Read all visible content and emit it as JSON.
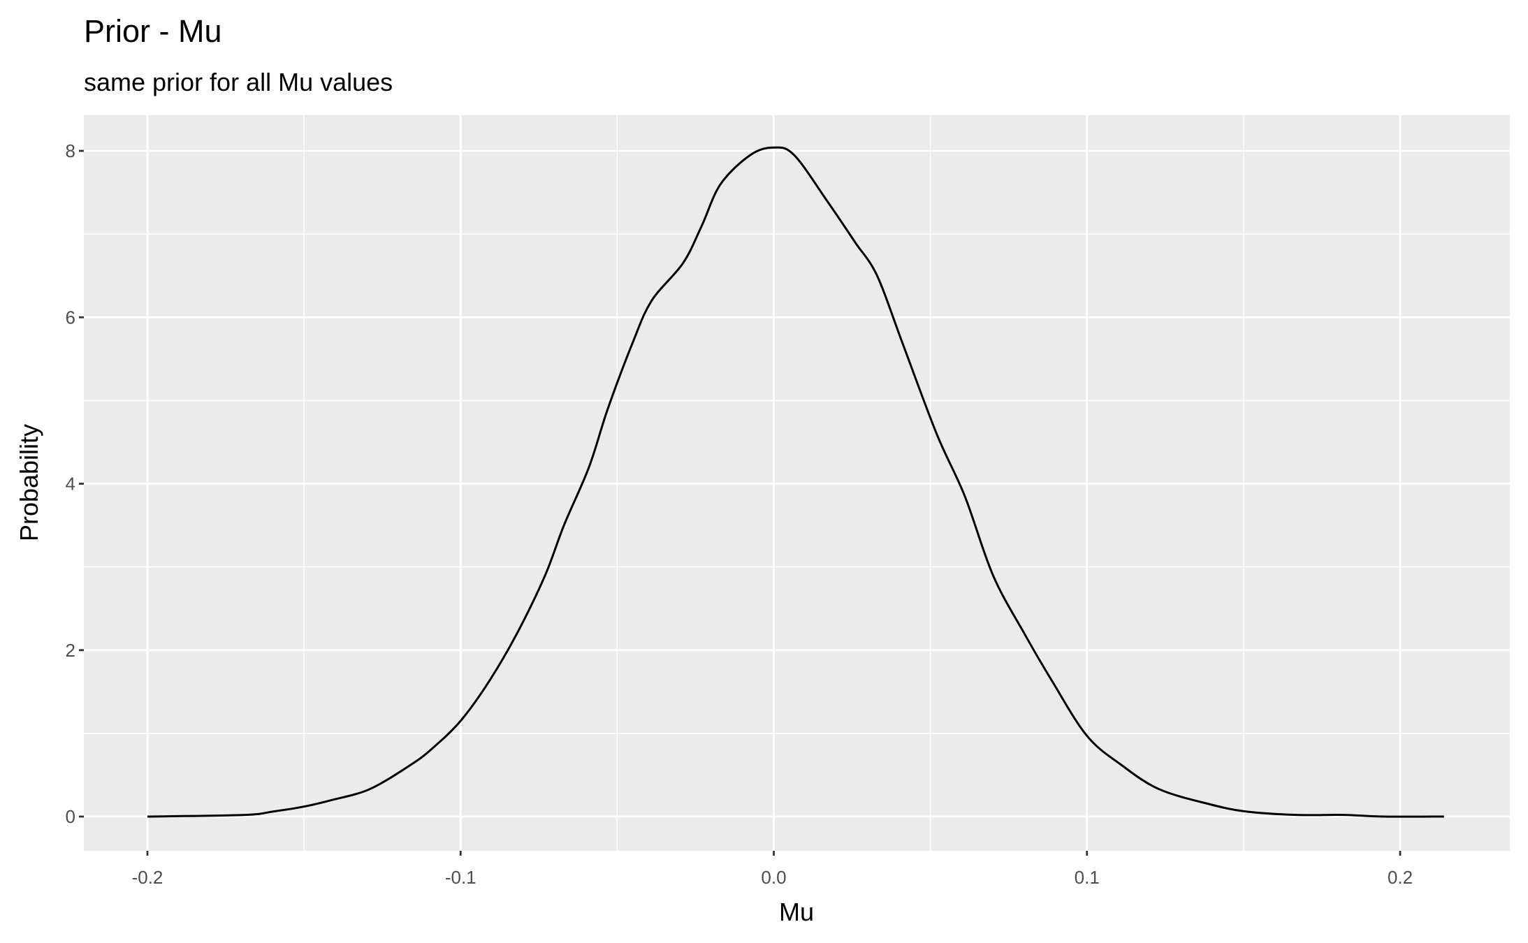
{
  "chart_data": {
    "type": "line",
    "title": "Prior - Mu",
    "subtitle": "same prior for all Mu values",
    "xlabel": "Mu",
    "ylabel": "Probability",
    "xlim": [
      -0.22,
      0.235
    ],
    "ylim": [
      -0.4,
      8.45
    ],
    "x_ticks": [
      -0.2,
      -0.1,
      0.0,
      0.1,
      0.2
    ],
    "x_tick_labels": [
      "-0.2",
      "-0.1",
      "0.0",
      "0.1",
      "0.2"
    ],
    "y_ticks": [
      0,
      2,
      4,
      6,
      8
    ],
    "y_tick_labels": [
      "0",
      "2",
      "4",
      "6",
      "8"
    ],
    "grid": true,
    "colors": {
      "panel": "#EBEBEB",
      "grid": "#FFFFFF",
      "line": "#000000"
    },
    "series": [
      {
        "x": [
          -0.2,
          -0.169,
          -0.16,
          -0.15,
          -0.141,
          -0.129,
          -0.116,
          -0.109,
          -0.1,
          -0.091,
          -0.082,
          -0.073,
          -0.067,
          -0.059,
          -0.053,
          -0.045,
          -0.039,
          -0.029,
          -0.023,
          -0.017,
          -0.0075,
          0.0,
          0.0065,
          0.017,
          0.026,
          0.033,
          0.041,
          0.052,
          0.061,
          0.07,
          0.08,
          0.089,
          0.1,
          0.111,
          0.123,
          0.139,
          0.151,
          0.167,
          0.182,
          0.195,
          0.214
        ],
        "y": [
          0,
          0.02,
          0.06,
          0.12,
          0.2,
          0.33,
          0.62,
          0.82,
          1.15,
          1.62,
          2.2,
          2.9,
          3.5,
          4.2,
          4.9,
          5.7,
          6.2,
          6.65,
          7.1,
          7.6,
          7.95,
          8.04,
          7.95,
          7.4,
          6.9,
          6.5,
          5.7,
          4.6,
          3.85,
          2.9,
          2.2,
          1.62,
          0.97,
          0.62,
          0.33,
          0.15,
          0.06,
          0.02,
          0.02,
          0,
          0
        ]
      }
    ]
  }
}
